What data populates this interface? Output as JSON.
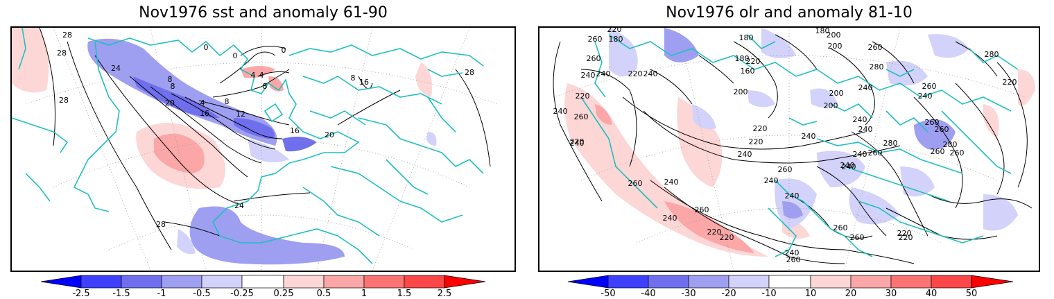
{
  "left_panel": {
    "title": "Nov1976 sst and anomaly 61-90",
    "contour_labels": [
      "28",
      "28",
      "28",
      "28",
      "24",
      "24",
      "20",
      "20",
      "16",
      "16",
      "12",
      "8",
      "8",
      "8",
      "8",
      "4",
      "4",
      "4",
      "0",
      "0",
      "0",
      "16",
      "8",
      "28"
    ],
    "colorbar": {
      "ticks": [
        "-2.5",
        "-1.5",
        "-1",
        "-0.5",
        "-0.25",
        "0.25",
        "0.5",
        "1",
        "1.5",
        "2.5"
      ],
      "colors": [
        "#0000ff",
        "#3f3fff",
        "#6f6fee",
        "#9f9ff2",
        "#d2d2fa",
        "#ffffff",
        "#fdd6d6",
        "#fba7a7",
        "#fb7474",
        "#fb4747",
        "#ff0000"
      ]
    }
  },
  "right_panel": {
    "title": "Nov1976 olr and anomaly 81-10",
    "contour_labels": [
      "220",
      "180",
      "180",
      "180",
      "200",
      "200",
      "260",
      "260",
      "220",
      "240",
      "220",
      "180",
      "160",
      "240",
      "260",
      "280",
      "280",
      "240",
      "240",
      "260",
      "220",
      "200",
      "200",
      "200",
      "240",
      "260",
      "220",
      "240",
      "220",
      "240",
      "240",
      "240",
      "260",
      "220",
      "240",
      "260",
      "280",
      "260",
      "240",
      "260",
      "240",
      "240",
      "240",
      "280",
      "260",
      "260",
      "240",
      "220",
      "220",
      "220",
      "220",
      "240",
      "260",
      "260",
      "240",
      "220",
      "240",
      "260",
      "240",
      "260",
      "260"
    ],
    "colorbar": {
      "ticks": [
        "-50",
        "-40",
        "-30",
        "-20",
        "-10",
        "10",
        "20",
        "30",
        "40",
        "50"
      ],
      "colors": [
        "#0000ff",
        "#3f3fff",
        "#6f6fee",
        "#9f9ff2",
        "#d2d2fa",
        "#ffffff",
        "#fdd6d6",
        "#fba7a7",
        "#fb7474",
        "#fb4747",
        "#ff0000"
      ]
    }
  },
  "colors": {
    "coastline": "#1fbfbf",
    "contour": "#000000",
    "grid": "#999999"
  }
}
